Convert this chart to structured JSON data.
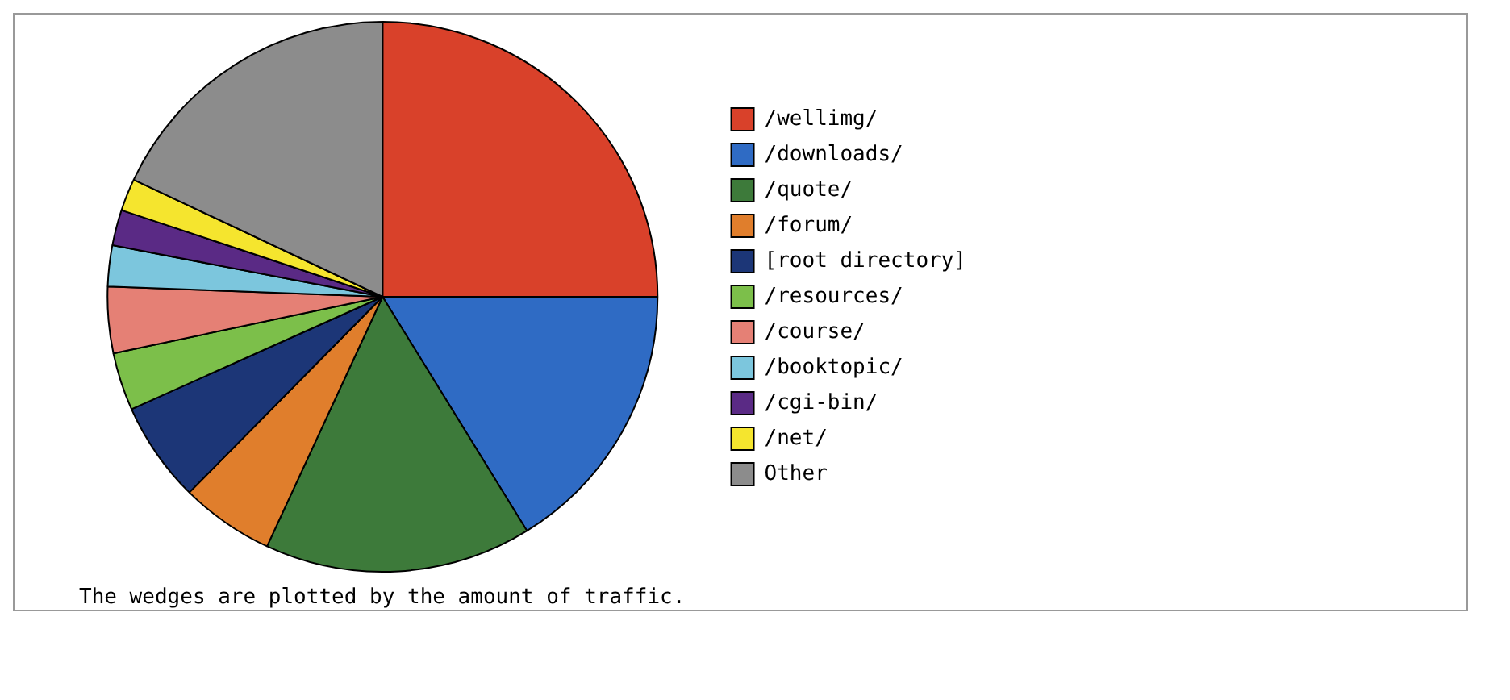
{
  "chart_data": {
    "type": "pie",
    "categories": [
      "/wellimg/",
      "/downloads/",
      "/quote/",
      "/forum/",
      "[root directory]",
      "/resources/",
      "/course/",
      "/booktopic/",
      "/cgi-bin/",
      "/net/",
      "Other"
    ],
    "values": [
      25,
      16.2,
      15.7,
      5.5,
      5.9,
      3.4,
      3.9,
      2.4,
      2.1,
      1.9,
      18
    ],
    "colors": [
      "#d9412a",
      "#2f6bc4",
      "#3d7a3a",
      "#e07e2c",
      "#1c3677",
      "#7cbf4a",
      "#e58075",
      "#7cc6dd",
      "#5a2a85",
      "#f5e52e",
      "#8c8c8c"
    ],
    "legend": "right",
    "annotations": [
      "The wedges are plotted by the amount of traffic."
    ]
  }
}
